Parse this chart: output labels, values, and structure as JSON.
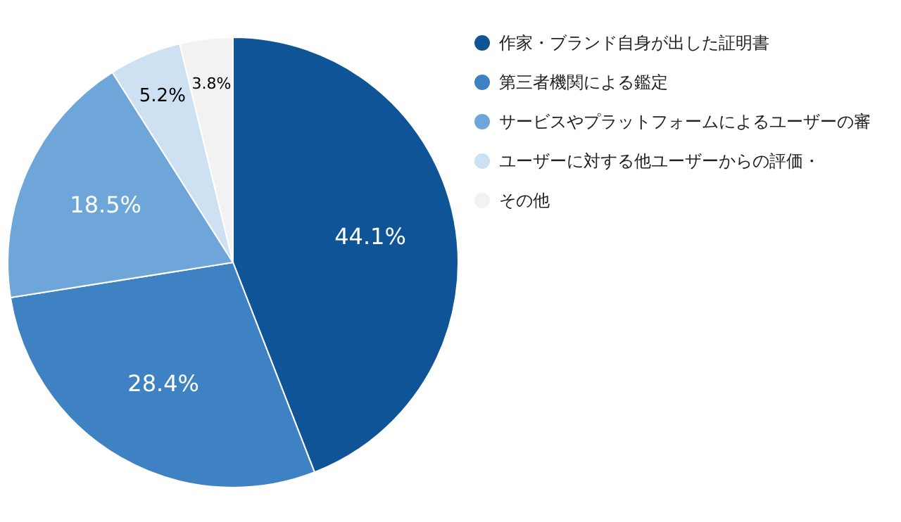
{
  "chart_data": {
    "type": "pie",
    "categories": [
      "作家・ブランド自身が出した証明書",
      "第三者機関による鑑定",
      "サービスやプラットフォームによるユーザーの審",
      "ユーザーに対する他ユーザーからの評価・",
      "その他"
    ],
    "values": [
      44.1,
      28.4,
      18.5,
      5.2,
      3.8
    ],
    "colors": [
      "#0f5496",
      "#3f82c4",
      "#6fa6d9",
      "#cde1f2",
      "#f2f2f2"
    ],
    "value_labels": [
      "44.1%",
      "28.4%",
      "18.5%",
      "5.2%",
      "3.8%"
    ],
    "legend": "right"
  }
}
